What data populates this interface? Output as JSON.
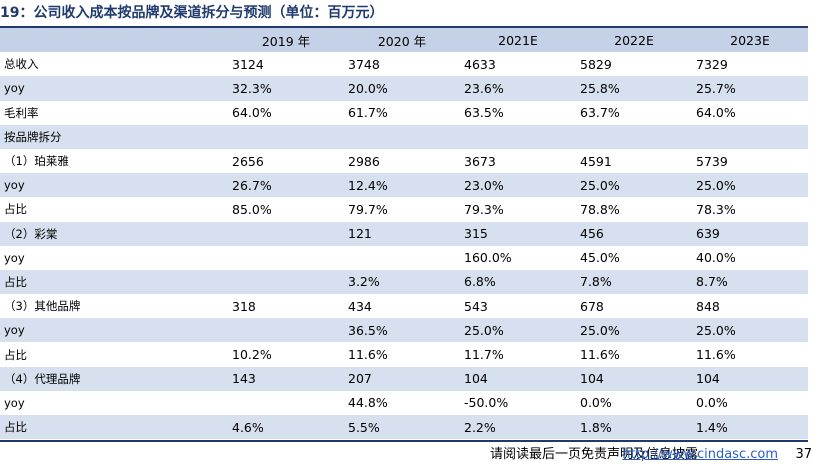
{
  "title": "19：公司收入成本按品牌及渠道拆分与预测（单位：百万元）",
  "table": {
    "headers": [
      "",
      "2019 年",
      "2020 年",
      "2021E",
      "2022E",
      "2023E"
    ],
    "rows": [
      {
        "label": "总收入",
        "values": [
          "3124",
          "3748",
          "4633",
          "5829",
          "7329"
        ],
        "shade": false
      },
      {
        "label": "yoy",
        "values": [
          "32.3%",
          "20.0%",
          "23.6%",
          "25.8%",
          "25.7%"
        ],
        "shade": true
      },
      {
        "label": "毛利率",
        "values": [
          "64.0%",
          "61.7%",
          "63.5%",
          "63.7%",
          "64.0%"
        ],
        "shade": false
      },
      {
        "label": "按品牌拆分",
        "values": [
          "",
          "",
          "",
          "",
          ""
        ],
        "shade": true
      },
      {
        "label": "（1）珀莱雅",
        "values": [
          "2656",
          "2986",
          "3673",
          "4591",
          "5739"
        ],
        "shade": false
      },
      {
        "label": "yoy",
        "values": [
          "26.7%",
          "12.4%",
          "23.0%",
          "25.0%",
          "25.0%"
        ],
        "shade": true
      },
      {
        "label": "占比",
        "values": [
          "85.0%",
          "79.7%",
          "79.3%",
          "78.8%",
          "78.3%"
        ],
        "shade": false
      },
      {
        "label": "（2）彩棠",
        "values": [
          "",
          "121",
          "315",
          "456",
          "639"
        ],
        "shade": true
      },
      {
        "label": "yoy",
        "values": [
          "",
          "",
          "160.0%",
          "45.0%",
          "40.0%"
        ],
        "shade": false
      },
      {
        "label": "占比",
        "values": [
          "",
          "3.2%",
          "6.8%",
          "7.8%",
          "8.7%"
        ],
        "shade": true
      },
      {
        "label": "（3）其他品牌",
        "values": [
          "318",
          "434",
          "543",
          "678",
          "848"
        ],
        "shade": false
      },
      {
        "label": "yoy",
        "values": [
          "",
          "36.5%",
          "25.0%",
          "25.0%",
          "25.0%"
        ],
        "shade": true
      },
      {
        "label": "占比",
        "values": [
          "10.2%",
          "11.6%",
          "11.7%",
          "11.6%",
          "11.6%"
        ],
        "shade": false
      },
      {
        "label": "（4）代理品牌",
        "values": [
          "143",
          "207",
          "104",
          "104",
          "104"
        ],
        "shade": true
      },
      {
        "label": "yoy",
        "values": [
          "",
          "44.8%",
          "-50.0%",
          "0.0%",
          "0.0%"
        ],
        "shade": false
      },
      {
        "label": "占比",
        "values": [
          "4.6%",
          "5.5%",
          "2.2%",
          "1.8%",
          "1.4%"
        ],
        "shade": true
      }
    ]
  },
  "footer": {
    "disclaimer": "请阅读最后一页免责声明及信息披露",
    "url": "http://www.cindasc.com",
    "page": "37"
  },
  "colors": {
    "header_bg": "#c4d1e6",
    "shade_bg": "#d7e0ee",
    "rule": "#1f3a6e",
    "link": "#2b5fc7"
  }
}
